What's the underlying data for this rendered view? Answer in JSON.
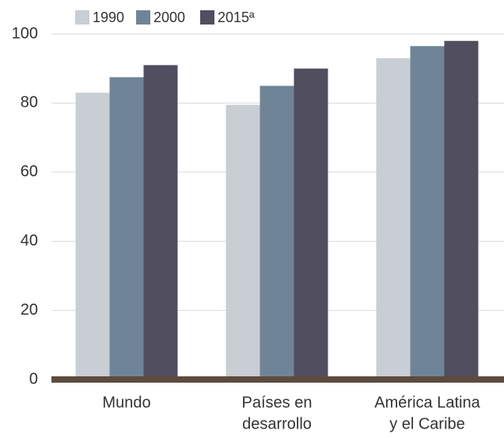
{
  "chart_data": {
    "type": "bar",
    "categories": [
      [
        "Mundo"
      ],
      [
        "Países en",
        "desarrollo"
      ],
      [
        "América Latina",
        "y el Caribe"
      ]
    ],
    "series": [
      {
        "name": "1990",
        "color": "#c9cdd4",
        "values": [
          83,
          79.5,
          93
        ]
      },
      {
        "name": "2000",
        "color": "#6f8597",
        "values": [
          87.5,
          85,
          96.5
        ]
      },
      {
        "name": "2015ª",
        "color": "#504e5f",
        "values": [
          91,
          90,
          98
        ]
      }
    ],
    "ylim": [
      0,
      100
    ],
    "yticks": [
      0,
      20,
      40,
      60,
      80,
      100
    ],
    "grid": true
  }
}
